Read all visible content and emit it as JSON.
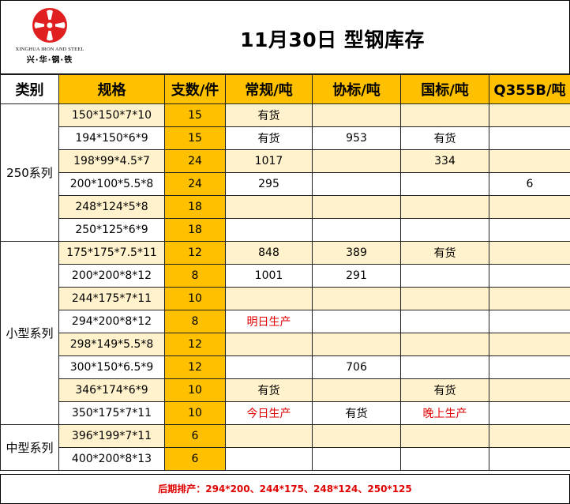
{
  "logo": {
    "en_text": "XINGHUA IRON AND STEEL",
    "cn_text": "兴·华·钢·铁",
    "icon": "xinghua-gear-logo-icon",
    "color": "#e02020"
  },
  "title": "11月30日 型钢库存",
  "columns": [
    "类别",
    "规格",
    "支数/件",
    "常规/吨",
    "协标/吨",
    "国标/吨",
    "Q355B/吨"
  ],
  "colors": {
    "gold": "#ffc000",
    "cream": "#fff2cc",
    "red_text": "#e00000"
  },
  "groups": [
    {
      "category": "250系列",
      "rows": [
        {
          "spec": "150*150*7*10",
          "count": "15",
          "regular": "有货",
          "association": "",
          "national": "",
          "q355b": ""
        },
        {
          "spec": "194*150*6*9",
          "count": "15",
          "regular": "有货",
          "association": "953",
          "national": "有货",
          "q355b": ""
        },
        {
          "spec": "198*99*4.5*7",
          "count": "24",
          "regular": "1017",
          "association": "",
          "national": "334",
          "q355b": ""
        },
        {
          "spec": "200*100*5.5*8",
          "count": "24",
          "regular": "295",
          "association": "",
          "national": "",
          "q355b": "6"
        },
        {
          "spec": "248*124*5*8",
          "count": "18",
          "regular": "",
          "association": "",
          "national": "",
          "q355b": ""
        },
        {
          "spec": "250*125*6*9",
          "count": "18",
          "regular": "",
          "association": "",
          "national": "",
          "q355b": ""
        }
      ]
    },
    {
      "category": "小型系列",
      "rows": [
        {
          "spec": "175*175*7.5*11",
          "count": "12",
          "regular": "848",
          "association": "389",
          "national": "有货",
          "q355b": ""
        },
        {
          "spec": "200*200*8*12",
          "count": "8",
          "regular": "1001",
          "association": "291",
          "national": "",
          "q355b": ""
        },
        {
          "spec": "244*175*7*11",
          "count": "10",
          "regular": "",
          "association": "",
          "national": "",
          "q355b": ""
        },
        {
          "spec": "294*200*8*12",
          "count": "8",
          "regular": "明日生产",
          "association": "",
          "national": "",
          "q355b": ""
        },
        {
          "spec": "298*149*5.5*8",
          "count": "12",
          "regular": "",
          "association": "",
          "national": "",
          "q355b": ""
        },
        {
          "spec": "300*150*6.5*9",
          "count": "12",
          "regular": "",
          "association": "706",
          "national": "",
          "q355b": ""
        },
        {
          "spec": "346*174*6*9",
          "count": "10",
          "regular": "有货",
          "association": "",
          "national": "有货",
          "q355b": ""
        },
        {
          "spec": "350*175*7*11",
          "count": "10",
          "regular": "今日生产",
          "association": "有货",
          "national": "晚上生产",
          "q355b": ""
        }
      ]
    },
    {
      "category": "中型系列",
      "rows": [
        {
          "spec": "396*199*7*11",
          "count": "6",
          "regular": "",
          "association": "",
          "national": "",
          "q355b": ""
        },
        {
          "spec": "400*200*8*13",
          "count": "6",
          "regular": "",
          "association": "",
          "national": "",
          "q355b": ""
        }
      ]
    }
  ],
  "footer": "后期排产：294*200、244*175、248*124、250*125"
}
